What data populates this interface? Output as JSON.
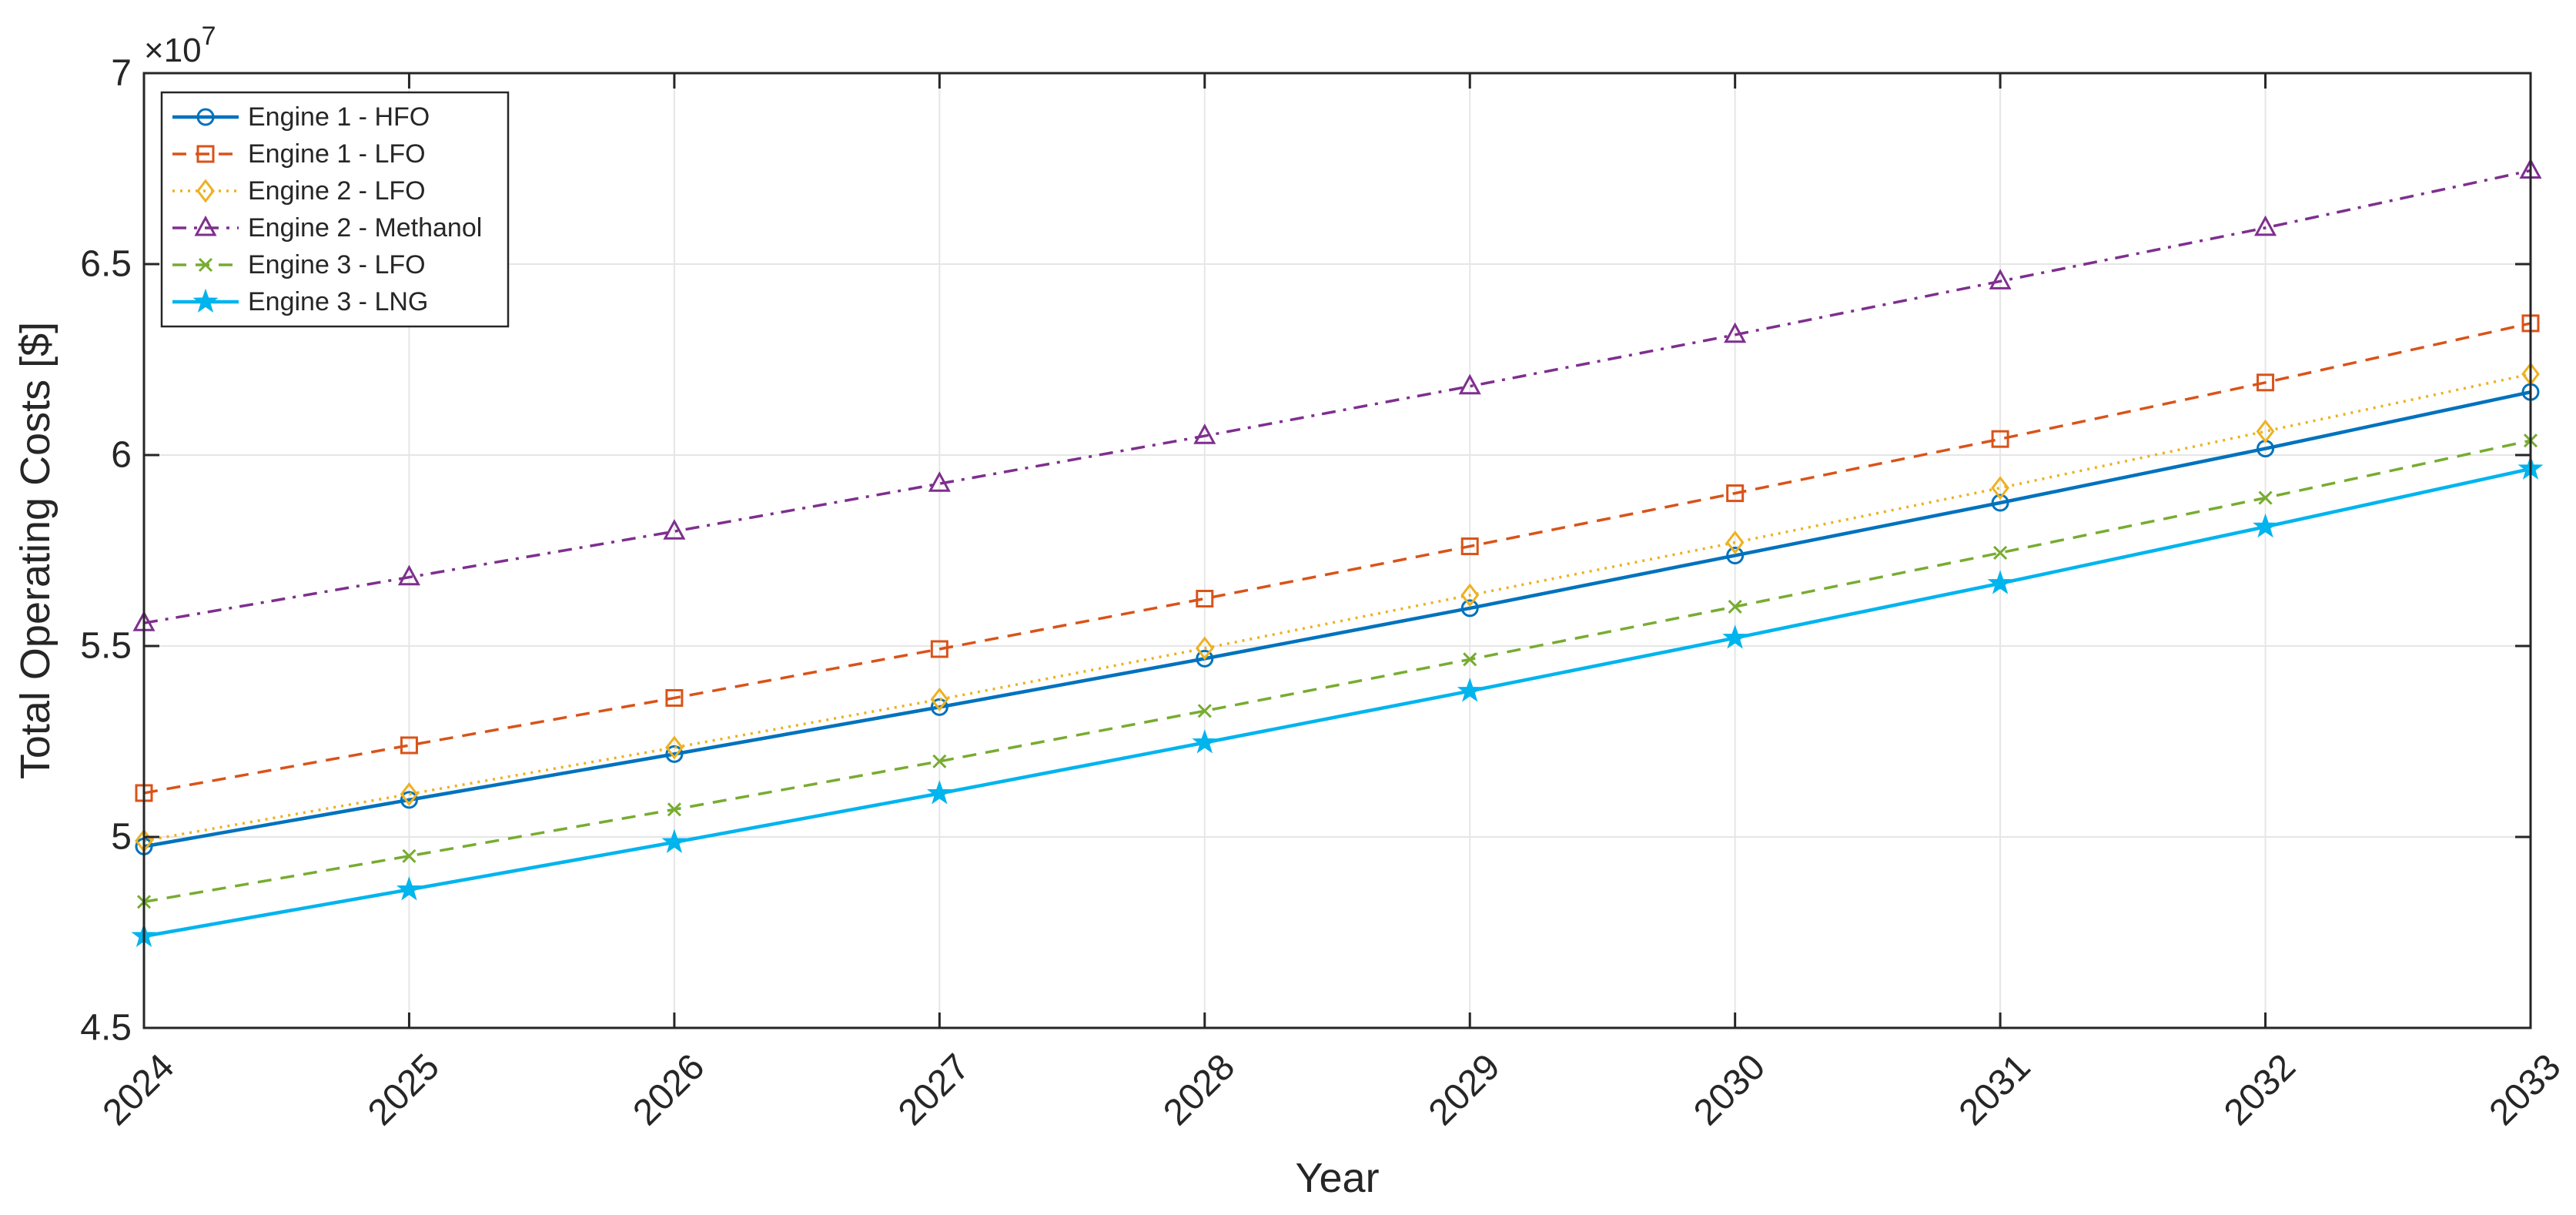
{
  "chart_data": {
    "type": "line",
    "title": "",
    "xlabel": "Year",
    "ylabel": "Total Operating Costs [$]",
    "y_exponent_label": "×10",
    "y_exponent_power": "7",
    "y_scale": 10000000,
    "categories": [
      "2024",
      "2025",
      "2026",
      "2027",
      "2028",
      "2029",
      "2030",
      "2031",
      "2032",
      "2033"
    ],
    "xlim": [
      2024,
      2033
    ],
    "ylim": [
      4.5,
      7
    ],
    "y_ticks": [
      "4.5",
      "5",
      "5.5",
      "6",
      "6.5",
      "7"
    ],
    "grid": true,
    "legend_position": "top-left",
    "series": [
      {
        "name": "Engine 1 - HFO",
        "color": "#0072BD",
        "line_style": "solid",
        "marker": "circle",
        "values": [
          49750000,
          50970000,
          52170000,
          53400000,
          54670000,
          55990000,
          57370000,
          58750000,
          60170000,
          61650000
        ]
      },
      {
        "name": "Engine 1 - LFO",
        "color": "#D95319",
        "line_style": "dashed",
        "marker": "square",
        "values": [
          51150000,
          52400000,
          53640000,
          54920000,
          56240000,
          57610000,
          59000000,
          60420000,
          61900000,
          63450000
        ]
      },
      {
        "name": "Engine 2 - LFO",
        "color": "#EDB120",
        "line_style": "dotted",
        "marker": "diamond",
        "values": [
          49900000,
          51120000,
          52340000,
          53600000,
          54940000,
          56330000,
          57710000,
          59140000,
          60620000,
          62120000
        ]
      },
      {
        "name": "Engine 2 - Methanol",
        "color": "#7E2F8E",
        "line_style": "dashdot",
        "marker": "triangle",
        "values": [
          55600000,
          56800000,
          58000000,
          59250000,
          60500000,
          61800000,
          63150000,
          64550000,
          65950000,
          67450000
        ]
      },
      {
        "name": "Engine 3 - LFO",
        "color": "#77AC30",
        "line_style": "dashed",
        "marker": "x",
        "values": [
          48300000,
          49500000,
          50720000,
          51980000,
          53300000,
          54650000,
          56030000,
          57440000,
          58880000,
          60380000
        ]
      },
      {
        "name": "Engine 3 - LNG",
        "color": "#00B4EE",
        "line_style": "solid",
        "marker": "star",
        "values": [
          47400000,
          48620000,
          49860000,
          51140000,
          52470000,
          53820000,
          55210000,
          56640000,
          58120000,
          59640000
        ]
      }
    ]
  }
}
